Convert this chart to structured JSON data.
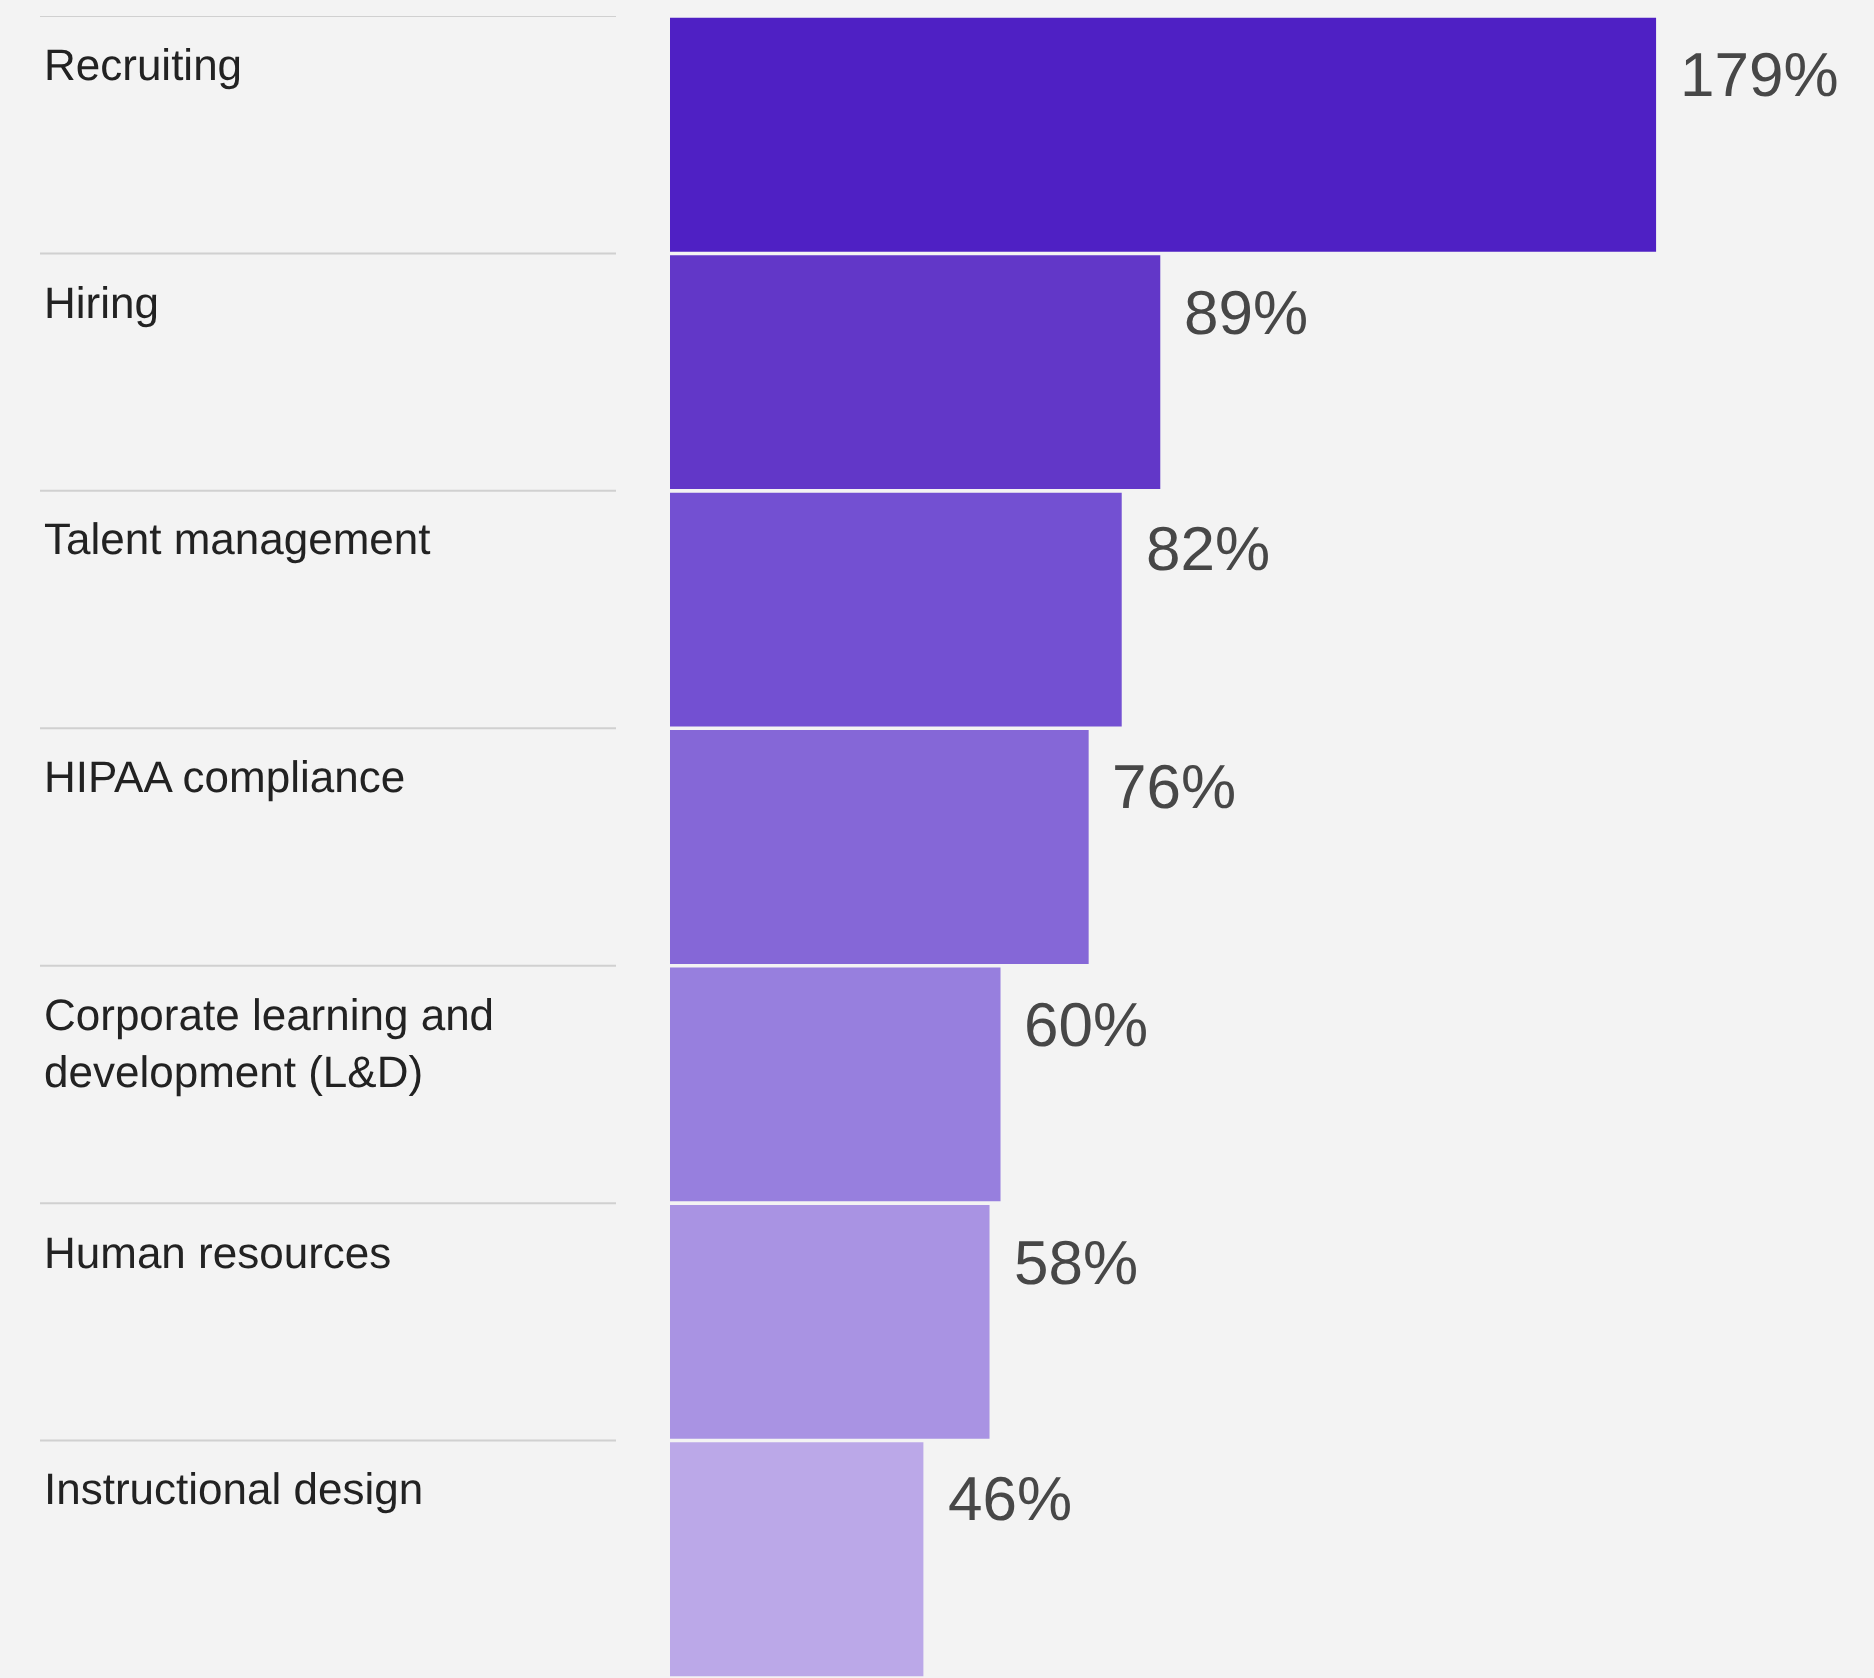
{
  "chart_data": {
    "type": "bar",
    "orientation": "horizontal",
    "categories": [
      "Recruiting",
      "Hiring",
      "Talent management",
      "HIPAA compliance",
      "Corporate learning and development (L&D)",
      "Human resources",
      "Instructional design"
    ],
    "values": [
      179,
      89,
      82,
      76,
      60,
      58,
      46
    ],
    "value_labels": [
      "179%",
      "89%",
      "82%",
      "76%",
      "60%",
      "58%",
      "46%"
    ],
    "colors": [
      "#4f20c4",
      "#6237c8",
      "#7350d2",
      "#8567d7",
      "#977fde",
      "#a993e3",
      "#bba8e8"
    ],
    "legend": false
  }
}
